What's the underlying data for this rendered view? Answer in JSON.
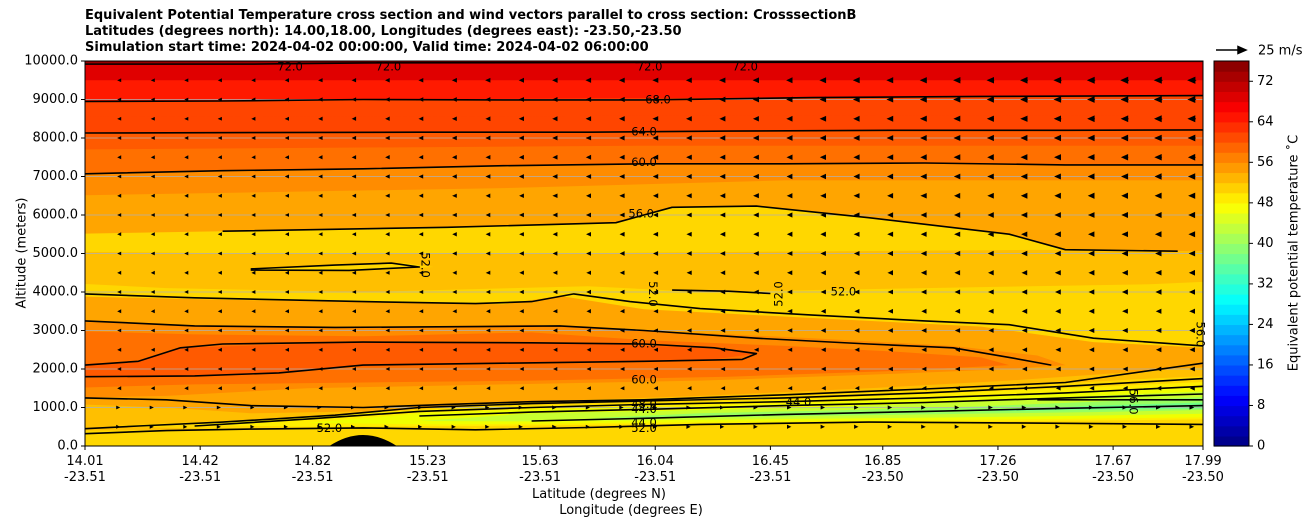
{
  "chart_data": {
    "type": "heatmap",
    "title_lines": [
      "Equivalent Potential Temperature cross section and wind vectors parallel to cross section: CrosssectionB",
      "Latitudes (degrees north): 14.00,18.00, Longitudes (degrees east): -23.50,-23.50",
      "Simulation start time: 2024-04-02 00:00:00, Valid time: 2024-04-02 06:00:00"
    ],
    "xlabel_lines": [
      "Latitude (degrees N)",
      "Longitude (degrees E)"
    ],
    "ylabel": "Altitude (meters)",
    "x_range": [
      14.01,
      17.99
    ],
    "ylim": [
      0,
      10000
    ],
    "x_ticks": [
      {
        "lat": "14.01",
        "lon": "-23.51",
        "value": 14.01
      },
      {
        "lat": "14.42",
        "lon": "-23.51",
        "value": 14.42
      },
      {
        "lat": "14.82",
        "lon": "-23.51",
        "value": 14.82
      },
      {
        "lat": "15.23",
        "lon": "-23.51",
        "value": 15.23
      },
      {
        "lat": "15.63",
        "lon": "-23.51",
        "value": 15.63
      },
      {
        "lat": "16.04",
        "lon": "-23.51",
        "value": 16.04
      },
      {
        "lat": "16.45",
        "lon": "-23.51",
        "value": 16.45
      },
      {
        "lat": "16.85",
        "lon": "-23.50",
        "value": 16.85
      },
      {
        "lat": "17.26",
        "lon": "-23.50",
        "value": 17.26
      },
      {
        "lat": "17.67",
        "lon": "-23.50",
        "value": 17.67
      },
      {
        "lat": "17.99",
        "lon": "-23.50",
        "value": 17.99
      }
    ],
    "y_ticks": [
      {
        "label": "0.0",
        "value": 0
      },
      {
        "label": "1000.0",
        "value": 1000
      },
      {
        "label": "2000.0",
        "value": 2000
      },
      {
        "label": "3000.0",
        "value": 3000
      },
      {
        "label": "4000.0",
        "value": 4000
      },
      {
        "label": "5000.0",
        "value": 5000
      },
      {
        "label": "6000.0",
        "value": 6000
      },
      {
        "label": "7000.0",
        "value": 7000
      },
      {
        "label": "8000.0",
        "value": 8000
      },
      {
        "label": "9000.0",
        "value": 9000
      },
      {
        "label": "10000.0",
        "value": 10000
      }
    ],
    "grid": true,
    "colorbar": {
      "label": "Equivalent potential temperature ˚C",
      "range": [
        0,
        76
      ],
      "ticks": [
        0,
        8,
        16,
        24,
        32,
        40,
        48,
        56,
        64,
        72
      ]
    },
    "colors": {
      "c76": "#8b0000",
      "c72": "#e00000",
      "c68": "#ff1a00",
      "c64": "#ff4500",
      "c62": "#ff5a00",
      "c60": "#ff7000",
      "c58": "#ff8c00",
      "c56": "#ffa500",
      "c54": "#ffbf00",
      "c52": "#ffd700",
      "c50": "#ffee00",
      "c48": "#f0ff00",
      "c46": "#c8ff30",
      "c44": "#98ff60",
      "c42": "#70ff88"
    },
    "wind_key": {
      "label": "25 m/s",
      "speed": 25
    },
    "contour_labels": [
      {
        "text": "72.0",
        "lat": 14.74,
        "z": 9850
      },
      {
        "text": "72.0",
        "lat": 15.09,
        "z": 9850
      },
      {
        "text": "72.0",
        "lat": 16.02,
        "z": 9850
      },
      {
        "text": "72.0",
        "lat": 16.36,
        "z": 9850
      },
      {
        "text": "68.0",
        "lat": 16.05,
        "z": 8990
      },
      {
        "text": "64.0",
        "lat": 16.0,
        "z": 8150
      },
      {
        "text": "60.0",
        "lat": 16.0,
        "z": 7360
      },
      {
        "text": "56.0",
        "lat": 15.99,
        "z": 6030
      },
      {
        "text": "52.0",
        "lat": 15.22,
        "z": 4700,
        "rotate": 90
      },
      {
        "text": "52.0",
        "lat": 16.03,
        "z": 3950,
        "rotate": 90
      },
      {
        "text": "52.0",
        "lat": 16.48,
        "z": 3950,
        "rotate": -90
      },
      {
        "text": "52.0",
        "lat": 16.71,
        "z": 4000
      },
      {
        "text": "56.0",
        "lat": 17.98,
        "z": 2900,
        "rotate": 90
      },
      {
        "text": "60.0",
        "lat": 16.0,
        "z": 2650
      },
      {
        "text": "60.0",
        "lat": 16.0,
        "z": 1720
      },
      {
        "text": "48.0",
        "lat": 16.0,
        "z": 1080
      },
      {
        "text": "44.0",
        "lat": 16.0,
        "z": 950
      },
      {
        "text": "44.0",
        "lat": 16.55,
        "z": 1130
      },
      {
        "text": "44.0",
        "lat": 16.0,
        "z": 600
      },
      {
        "text": "52.0",
        "lat": 16.0,
        "z": 450
      },
      {
        "text": "52.0",
        "lat": 14.88,
        "z": 450
      },
      {
        "text": "56.0",
        "lat": 17.74,
        "z": 1150,
        "rotate": 90
      }
    ]
  }
}
